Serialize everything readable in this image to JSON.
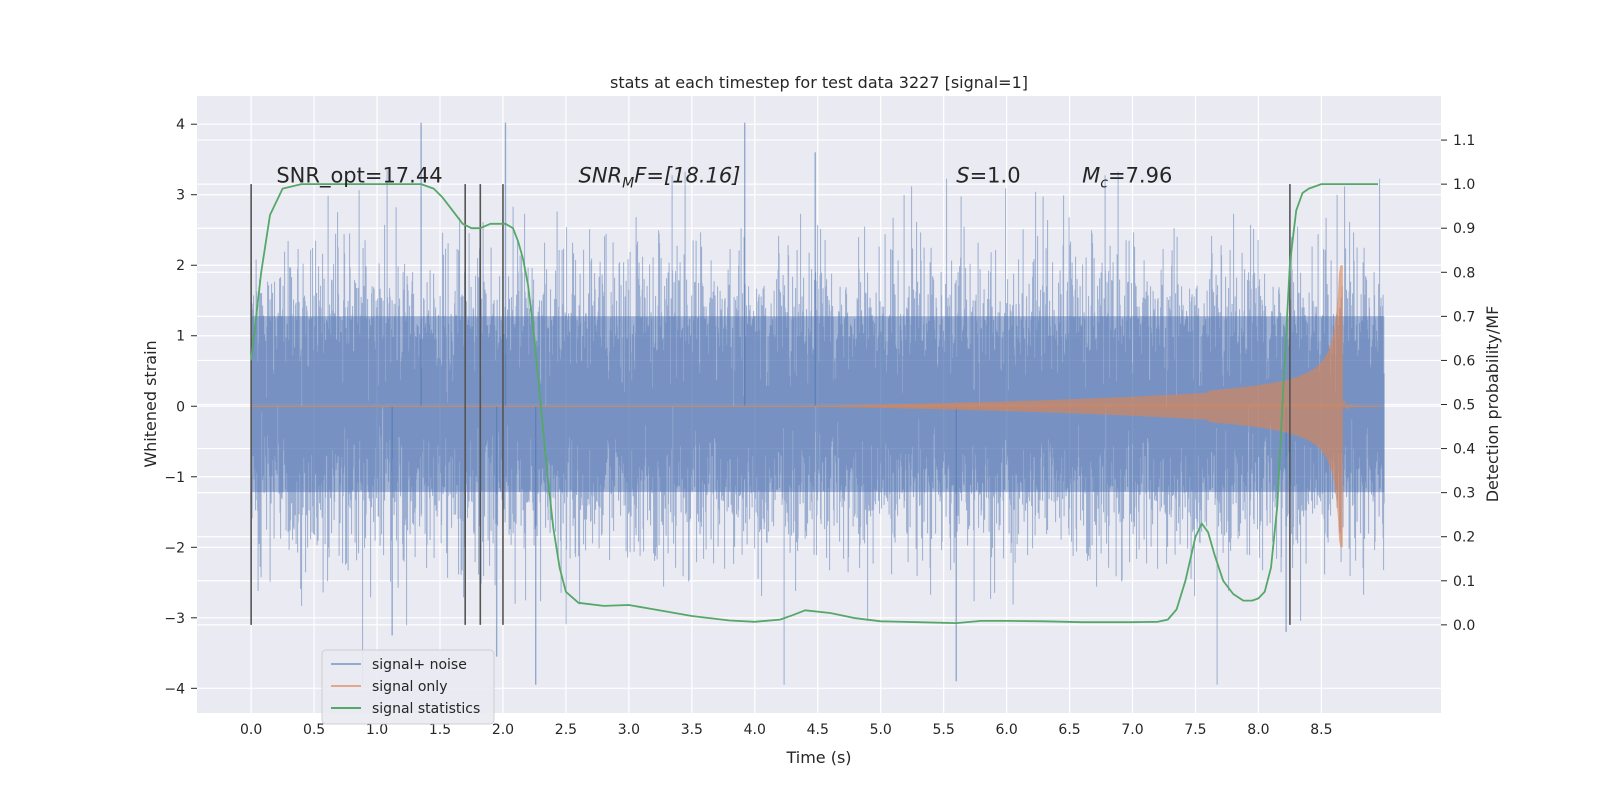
{
  "chart_data": {
    "type": "line",
    "title": "stats at each timestep for test data 3227 [signal=1]",
    "xlabel": "Time (s)",
    "ylabel": "Whitened strain",
    "ylabel_right": "Detection probability/MF",
    "xlim": [
      -0.43,
      9.45
    ],
    "ylim": [
      -4.35,
      4.4
    ],
    "ylim_right": [
      -0.2,
      1.2
    ],
    "xticks": [
      "0.0",
      "0.5",
      "1.0",
      "1.5",
      "2.0",
      "2.5",
      "3.0",
      "3.5",
      "4.0",
      "4.5",
      "5.0",
      "5.5",
      "6.0",
      "6.5",
      "7.0",
      "7.5",
      "8.0",
      "8.5"
    ],
    "yticks_left": [
      "−4",
      "−3",
      "−2",
      "−1",
      "0",
      "1",
      "2",
      "3",
      "4"
    ],
    "yticks_right": [
      "0.0",
      "0.1",
      "0.2",
      "0.3",
      "0.4",
      "0.5",
      "0.6",
      "0.7",
      "0.8",
      "0.9",
      "1.0",
      "1.1"
    ],
    "grid": true,
    "legend_position": "lower-left",
    "series": [
      {
        "name": "signal+ noise",
        "color": "#4c72b0",
        "kind": "noise",
        "duration": 9.0,
        "typical_amplitude": 1.2,
        "extreme_range": [
          -3.95,
          4.02
        ]
      },
      {
        "name": "signal only",
        "color": "#dd8452",
        "kind": "chirp",
        "start": 4.3,
        "merger": 8.67,
        "peak_amplitude": 2.0
      },
      {
        "name": "signal statistics",
        "color": "#55a868",
        "axis": "right",
        "x": [
          0.0,
          0.08,
          0.15,
          0.25,
          0.4,
          0.6,
          0.8,
          1.0,
          1.2,
          1.35,
          1.45,
          1.52,
          1.6,
          1.68,
          1.75,
          1.82,
          1.9,
          1.96,
          2.02,
          2.08,
          2.12,
          2.16,
          2.2,
          2.25,
          2.3,
          2.35,
          2.4,
          2.45,
          2.5,
          2.6,
          2.8,
          3.0,
          3.2,
          3.5,
          3.8,
          4.0,
          4.2,
          4.3,
          4.4,
          4.6,
          4.8,
          5.0,
          5.3,
          5.6,
          5.8,
          6.0,
          6.3,
          6.6,
          7.0,
          7.2,
          7.28,
          7.35,
          7.42,
          7.5,
          7.55,
          7.6,
          7.65,
          7.72,
          7.8,
          7.88,
          7.95,
          8.0,
          8.05,
          8.1,
          8.15,
          8.2,
          8.25,
          8.3,
          8.35,
          8.4,
          8.5,
          8.6,
          8.75,
          8.95
        ],
        "values": [
          0.6,
          0.8,
          0.93,
          0.99,
          1.0,
          1.0,
          1.0,
          1.0,
          1.0,
          1.0,
          0.99,
          0.97,
          0.94,
          0.91,
          0.9,
          0.9,
          0.91,
          0.91,
          0.91,
          0.9,
          0.87,
          0.83,
          0.77,
          0.65,
          0.5,
          0.35,
          0.22,
          0.13,
          0.075,
          0.05,
          0.043,
          0.045,
          0.035,
          0.02,
          0.01,
          0.007,
          0.012,
          0.022,
          0.033,
          0.027,
          0.015,
          0.008,
          0.006,
          0.004,
          0.009,
          0.009,
          0.008,
          0.006,
          0.006,
          0.007,
          0.012,
          0.035,
          0.1,
          0.2,
          0.23,
          0.21,
          0.16,
          0.1,
          0.07,
          0.055,
          0.055,
          0.06,
          0.075,
          0.13,
          0.27,
          0.55,
          0.82,
          0.94,
          0.98,
          0.99,
          1.0,
          1.0,
          1.0,
          1.0
        ]
      }
    ],
    "vlines": [
      0.0,
      1.7,
      1.82,
      2.0,
      8.25
    ],
    "annotations": [
      {
        "text": "SNR_opt=17.44",
        "x": 0.2,
        "y": 3.2
      },
      {
        "main": "SNR",
        "sub": "M",
        "rest": "F=[18.16]",
        "x": 2.6,
        "y": 3.2
      },
      {
        "main": "S",
        "rest": "=1.0",
        "x": 5.6,
        "y": 3.2
      },
      {
        "main": "M",
        "sub": "c",
        "rest": "=7.96",
        "x": 6.6,
        "y": 3.2
      }
    ]
  }
}
